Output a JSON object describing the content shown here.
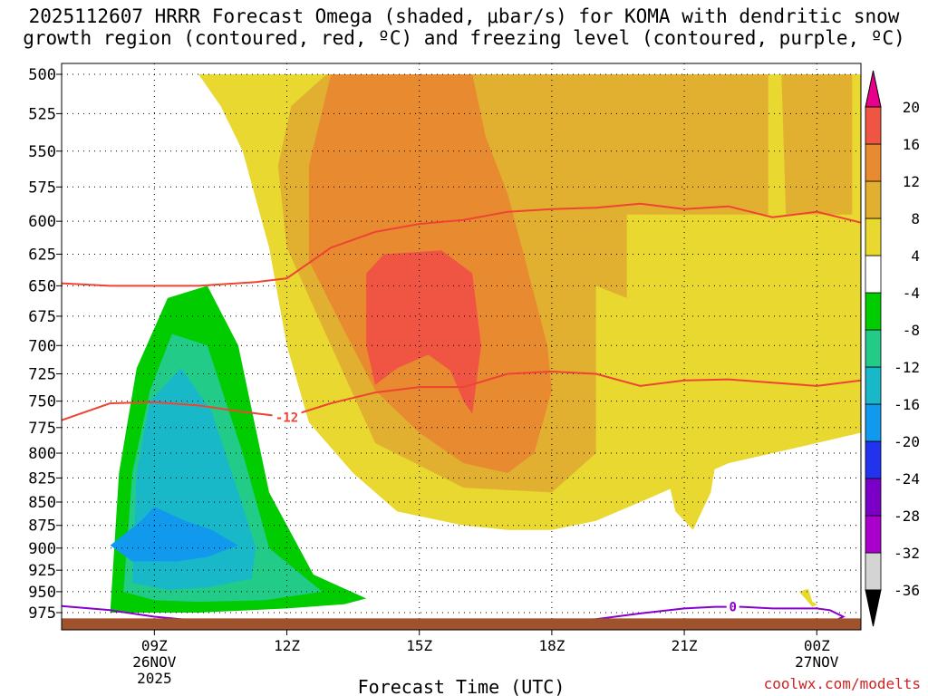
{
  "page": {
    "title_line1": "2025112607 HRRR Forecast Omega (shaded, μbar/s) for KOMA with dendritic snow",
    "title_line2": "growth region (contoured, red, ºC) and freezing level (contoured, purple, ºC)",
    "credit": "coolwx.com/modelts"
  },
  "colors": {
    "omega_fills": [
      "#d4d4d4",
      "#aa00cc",
      "#7a00c8",
      "#2233ee",
      "#1199ee",
      "#19b8c8",
      "#22cc88",
      "#00cc00",
      "#ffffff",
      "#e8d830",
      "#e2b030",
      "#e88a30",
      "#f05544",
      "#e8008a"
    ],
    "dgz_line": "#ee4433",
    "freezing_line": "#8800cc",
    "ground": "#a0522d",
    "grid": "#000000"
  },
  "chart_data": {
    "type": "heatmap",
    "xlabel": "Forecast Time (UTC)",
    "ylabel": "Pressure (hPa)",
    "x_unit": "hours after 2025-11-26 07Z",
    "xlim": [
      -0.1,
      18.0
    ],
    "ylim_pressure": [
      500,
      985
    ],
    "y_axis_scale": "log-pressure",
    "x_ticks": [
      {
        "x": 2,
        "label": "09Z",
        "date1": "26NOV",
        "date2": "2025"
      },
      {
        "x": 5,
        "label": "12Z"
      },
      {
        "x": 8,
        "label": "15Z"
      },
      {
        "x": 11,
        "label": "18Z"
      },
      {
        "x": 14,
        "label": "21Z"
      },
      {
        "x": 17,
        "label": "00Z",
        "date1": "27NOV"
      }
    ],
    "y_ticks": [
      500,
      525,
      550,
      575,
      600,
      625,
      650,
      675,
      700,
      725,
      750,
      775,
      800,
      825,
      850,
      875,
      900,
      925,
      950,
      975
    ],
    "colorbar": {
      "levels": [
        -36,
        -32,
        -28,
        -24,
        -20,
        -16,
        -12,
        -8,
        -4,
        4,
        8,
        12,
        16,
        20
      ],
      "labels": [
        "-36",
        "-32",
        "-28",
        "-24",
        "-20",
        "-16",
        "-12",
        "-8",
        "-4",
        "4",
        "8",
        "12",
        "16",
        "20"
      ],
      "extend": "both"
    },
    "omega_regions": [
      {
        "level": 4,
        "label": ">= 4",
        "polygons": [
          [
            [
              1,
              500
            ],
            [
              18,
              500
            ],
            [
              18,
              780
            ],
            [
              17,
              790
            ],
            [
              15,
              810
            ],
            [
              14,
              830
            ],
            [
              13,
              850
            ],
            [
              12,
              870
            ],
            [
              11,
              880
            ],
            [
              10,
              880
            ],
            [
              9,
              875
            ],
            [
              7.5,
              860
            ],
            [
              6.5,
              820
            ],
            [
              5.5,
              770
            ],
            [
              5,
              700
            ],
            [
              4.6,
              620
            ],
            [
              4,
              550
            ],
            [
              3.5,
              520
            ],
            [
              3,
              500
            ]
          ],
          [
            [
              13.9,
              645
            ],
            [
              14.2,
              640
            ],
            [
              14.6,
              690
            ],
            [
              14.9,
              760
            ],
            [
              14.6,
              840
            ],
            [
              14.2,
              880
            ],
            [
              13.8,
              860
            ],
            [
              13.5,
              800
            ],
            [
              13.6,
              720
            ]
          ],
          [
            [
              16.6,
              950
            ],
            [
              16.9,
              945
            ],
            [
              17.3,
              958
            ],
            [
              16.9,
              968
            ]
          ]
        ]
      },
      {
        "level": 8,
        "label": ">= 8",
        "polygons": [
          [
            [
              5.9,
              500
            ],
            [
              15.9,
              500
            ],
            [
              15.9,
              595
            ],
            [
              12.7,
              595
            ],
            [
              12.7,
              660
            ],
            [
              12,
              650
            ],
            [
              12,
              800
            ],
            [
              11,
              840
            ],
            [
              9,
              835
            ],
            [
              7,
              790
            ],
            [
              6,
              700
            ],
            [
              5,
              620
            ],
            [
              4.8,
              560
            ],
            [
              5.1,
              520
            ]
          ],
          [
            [
              16.2,
              500
            ],
            [
              17.8,
              500
            ],
            [
              17.8,
              595
            ],
            [
              16.3,
              595
            ]
          ]
        ]
      },
      {
        "level": 12,
        "label": ">= 12",
        "polygons": [
          [
            [
              6,
              500
            ],
            [
              9.2,
              500
            ],
            [
              9.5,
              540
            ],
            [
              10,
              580
            ],
            [
              10.4,
              630
            ],
            [
              10.9,
              700
            ],
            [
              11,
              740
            ],
            [
              10.6,
              800
            ],
            [
              10,
              820
            ],
            [
              9,
              810
            ],
            [
              8,
              780
            ],
            [
              7,
              740
            ],
            [
              6.2,
              680
            ],
            [
              5.5,
              630
            ],
            [
              5.5,
              560
            ]
          ]
        ]
      },
      {
        "level": 16,
        "label": ">= 16",
        "polygons": [
          [
            [
              6.8,
              640
            ],
            [
              7.2,
              625
            ],
            [
              8.5,
              622
            ],
            [
              9.2,
              640
            ],
            [
              9.4,
              700
            ],
            [
              9.2,
              762
            ],
            [
              9.0,
              750
            ],
            [
              8.7,
              722
            ],
            [
              8.2,
              708
            ],
            [
              7.5,
              720
            ],
            [
              7,
              735
            ],
            [
              6.8,
              700
            ]
          ]
        ]
      },
      {
        "level": -4,
        "label": "<= -4",
        "polygons": [
          [
            [
              0.5,
              975
            ],
            [
              0.6,
              840
            ],
            [
              0.8,
              760
            ],
            [
              1.2,
              690
            ],
            [
              1.6,
              650
            ],
            [
              2.1,
              603
            ],
            [
              2.7,
              618
            ],
            [
              3.9,
              638
            ],
            [
              4,
              700
            ],
            [
              4.5,
              780
            ],
            [
              5.5,
              850
            ],
            [
              6.5,
              910
            ],
            [
              7.4,
              920
            ],
            [
              8.5,
              930
            ],
            [
              9,
              950
            ],
            [
              9.1,
              985
            ],
            [
              0.5,
              985
            ]
          ],
          [
            [
              16.8,
              945
            ],
            [
              17.1,
              940
            ],
            [
              17.3,
              955
            ],
            [
              17.2,
              970
            ],
            [
              16.9,
              962
            ]
          ],
          [
            [
              12.8,
              978
            ],
            [
              13.8,
              978
            ],
            [
              13.8,
              983
            ],
            [
              12.8,
              983
            ]
          ]
        ]
      },
      {
        "level": -8,
        "label": "<= -8",
        "polygons": [
          [
            [
              1.0,
              975
            ],
            [
              1.2,
              820
            ],
            [
              1.6,
              720
            ],
            [
              2.3,
              660
            ],
            [
              3.2,
              650
            ],
            [
              3.9,
              700
            ],
            [
              4.6,
              840
            ],
            [
              5.6,
              930
            ],
            [
              6.8,
              958
            ],
            [
              6.3,
              965
            ],
            [
              5,
              970
            ],
            [
              3,
              975
            ]
          ]
        ]
      },
      {
        "level": -12,
        "label": "<= -12",
        "polygons": [
          [
            [
              1.3,
              950
            ],
            [
              1.5,
              820
            ],
            [
              1.9,
              740
            ],
            [
              2.4,
              690
            ],
            [
              3.2,
              700
            ],
            [
              4.0,
              800
            ],
            [
              4.6,
              900
            ],
            [
              5.8,
              950
            ],
            [
              4.5,
              960
            ],
            [
              3,
              962
            ],
            [
              2,
              960
            ]
          ]
        ]
      },
      {
        "level": -16,
        "label": "<= -16",
        "polygons": [
          [
            [
              1.5,
              940
            ],
            [
              1.6,
              820
            ],
            [
              1.9,
              750
            ],
            [
              2.6,
              720
            ],
            [
              3.3,
              760
            ],
            [
              3.9,
              840
            ],
            [
              4.3,
              900
            ],
            [
              4.2,
              935
            ],
            [
              3.2,
              945
            ],
            [
              2.3,
              948
            ]
          ]
        ]
      },
      {
        "level": -20,
        "label": "<= -20",
        "polygons": [
          [
            [
              1.0,
              897
            ],
            [
              1.7,
              870
            ],
            [
              2.0,
              855
            ],
            [
              2.7,
              870
            ],
            [
              3.3,
              880
            ],
            [
              3.9,
              897
            ],
            [
              3.2,
              910
            ],
            [
              2.5,
              915
            ],
            [
              1.5,
              915
            ]
          ]
        ]
      }
    ],
    "dgz_contours": [
      {
        "value": -18,
        "points": [
          [
            -0.1,
            648
          ],
          [
            1,
            650
          ],
          [
            3,
            650
          ],
          [
            4.3,
            647
          ],
          [
            5,
            644
          ],
          [
            6,
            620
          ],
          [
            7,
            608
          ],
          [
            8,
            602
          ],
          [
            9,
            599
          ],
          [
            10,
            593
          ],
          [
            11,
            591
          ],
          [
            12,
            590
          ],
          [
            13,
            587
          ],
          [
            14,
            591
          ],
          [
            15,
            589
          ],
          [
            16,
            597
          ],
          [
            17,
            593
          ],
          [
            18,
            601
          ]
        ]
      },
      {
        "value": -12,
        "label": "-12",
        "label_at": 5,
        "points": [
          [
            -0.1,
            768
          ],
          [
            1,
            752
          ],
          [
            2,
            751
          ],
          [
            3,
            754
          ],
          [
            4,
            760
          ],
          [
            5,
            765
          ],
          [
            6,
            752
          ],
          [
            7,
            742
          ],
          [
            8,
            737
          ],
          [
            9,
            737
          ],
          [
            10,
            725
          ],
          [
            11,
            723
          ],
          [
            12,
            725
          ],
          [
            13,
            736
          ],
          [
            14,
            731
          ],
          [
            15,
            730
          ],
          [
            16,
            733
          ],
          [
            17,
            736
          ],
          [
            18,
            731
          ]
        ]
      }
    ],
    "freezing_contours": [
      {
        "value": 0,
        "label": "0",
        "label_at": 15.1,
        "points": [
          [
            11.2,
            985
          ],
          [
            12,
            983
          ],
          [
            13,
            976
          ],
          [
            14,
            970
          ],
          [
            14.7,
            968
          ],
          [
            15.3,
            968
          ],
          [
            16,
            970
          ],
          [
            17,
            970
          ],
          [
            17.3,
            972
          ],
          [
            17.6,
            980
          ],
          [
            17.4,
            985
          ],
          [
            17,
            987
          ]
        ]
      },
      {
        "value": 0,
        "points": [
          [
            -0.1,
            967
          ],
          [
            1,
            972
          ],
          [
            2,
            980
          ],
          [
            3,
            985
          ]
        ]
      }
    ],
    "ground_top_pressure": 982
  }
}
